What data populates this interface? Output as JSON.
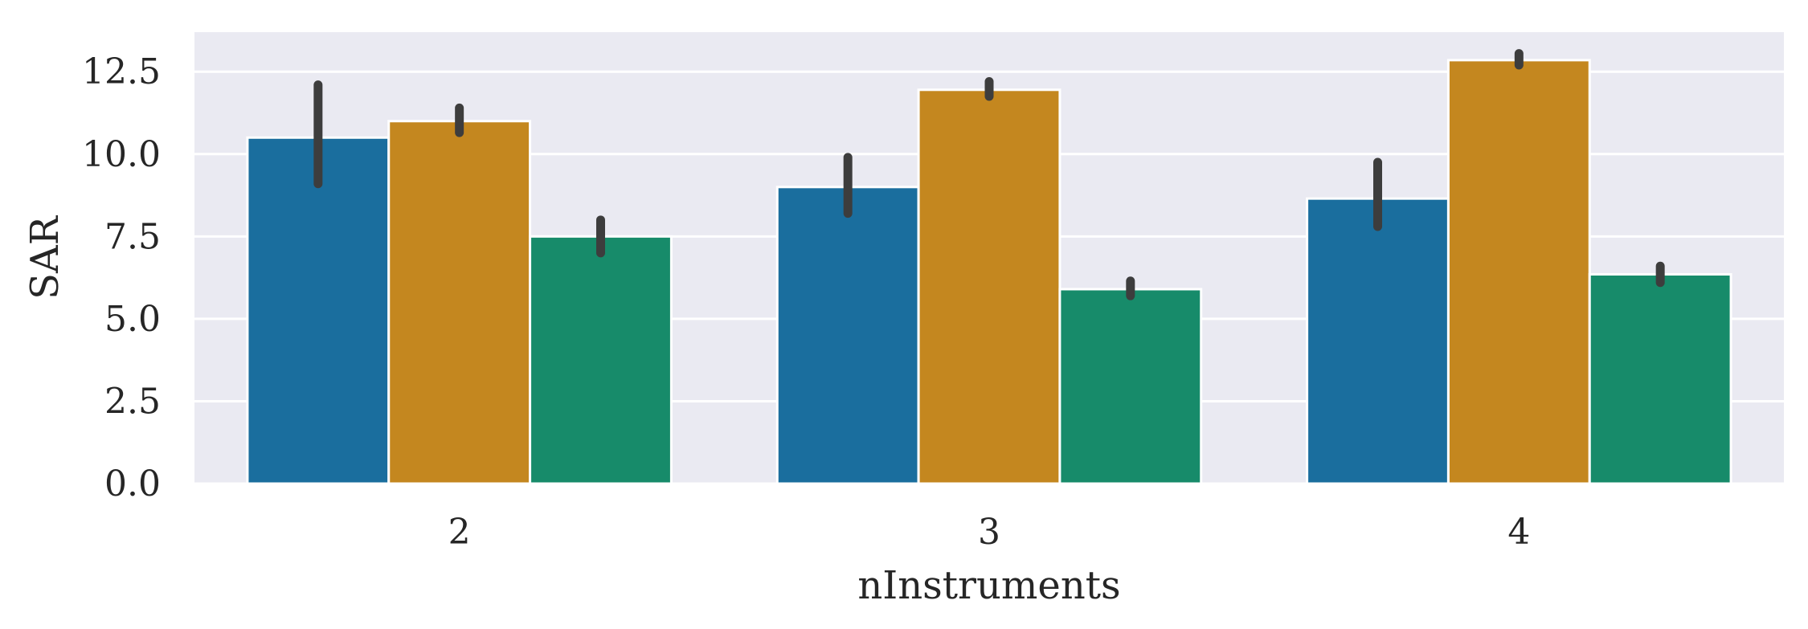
{
  "chart_data": {
    "type": "bar",
    "title": "",
    "xlabel": "nInstruments",
    "ylabel": "SAR",
    "categories": [
      "2",
      "3",
      "4"
    ],
    "ylim": [
      0,
      13.7
    ],
    "yticks": [
      0.0,
      2.5,
      5.0,
      7.5,
      10.0,
      12.5
    ],
    "ytick_labels": [
      "0.0",
      "2.5",
      "5.0",
      "7.5",
      "10.0",
      "12.5"
    ],
    "grid": true,
    "legend": "none",
    "background_color": "#eaeaf2",
    "grid_color": "#ffffff",
    "error_bar_color": "#3d3d3d",
    "series": [
      {
        "color": "#1a6e9e",
        "values": [
          10.5,
          9.0,
          8.65
        ],
        "error_low": [
          9.1,
          8.2,
          7.8
        ],
        "error_high": [
          12.1,
          9.9,
          9.75
        ]
      },
      {
        "color": "#c4871f",
        "values": [
          11.0,
          11.95,
          12.85
        ],
        "error_low": [
          10.65,
          11.75,
          12.7
        ],
        "error_high": [
          11.4,
          12.2,
          13.05
        ]
      },
      {
        "color": "#178b6a",
        "values": [
          7.5,
          5.9,
          6.35
        ],
        "error_low": [
          7.0,
          5.7,
          6.1
        ],
        "error_high": [
          8.0,
          6.15,
          6.6
        ]
      }
    ]
  }
}
